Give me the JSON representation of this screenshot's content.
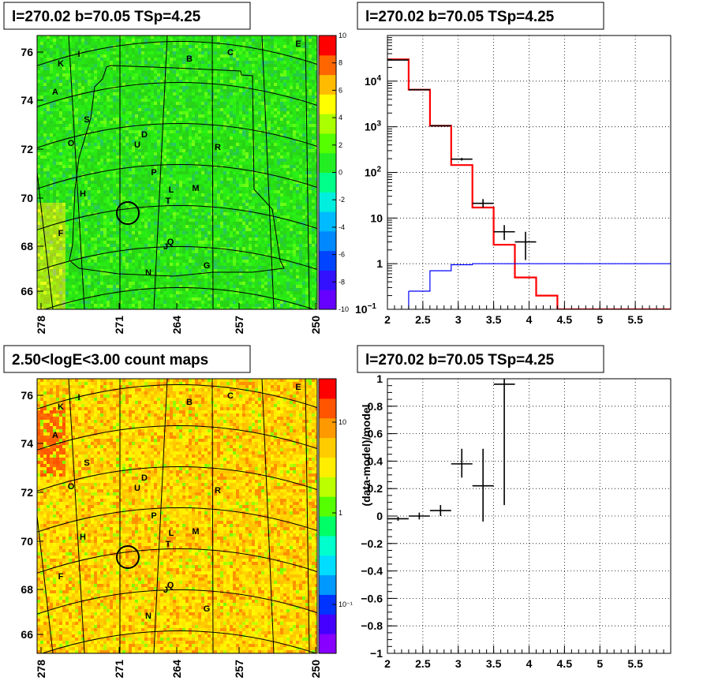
{
  "colors": {
    "data_points": "#000000",
    "model_step": "#ff0000",
    "background_step": "#0000ff",
    "grid": "#000000"
  },
  "panels": {
    "tl": {
      "title": "l=270.02 b=70.05 TSp=4.25",
      "y_ticks": [
        "66",
        "68",
        "70",
        "72",
        "74",
        "76"
      ],
      "x_ticks": [
        "278",
        "271",
        "264",
        "257",
        "250"
      ],
      "colorbar_ticks": [
        "-10",
        "-8",
        "-6",
        "-4",
        "-2",
        "0",
        "2",
        "4",
        "6",
        "8",
        "10"
      ],
      "labels": [
        "A",
        "B",
        "C",
        "D",
        "E",
        "F",
        "G",
        "H",
        "I",
        "K",
        "L",
        "M",
        "N",
        "O",
        "P",
        "Q",
        "R",
        "S",
        "T",
        "U",
        "J"
      ]
    },
    "tr": {
      "title": "l=270.02 b=70.05 TSp=4.25"
    },
    "bl": {
      "title": "2.50<logE<3.00 count maps",
      "y_ticks": [
        "66",
        "68",
        "70",
        "72",
        "74",
        "76"
      ],
      "x_ticks": [
        "278",
        "271",
        "264",
        "257",
        "250"
      ],
      "colorbar_ticks": [
        "10",
        "1",
        "10⁻¹"
      ],
      "labels": [
        "A",
        "B",
        "C",
        "D",
        "E",
        "F",
        "G",
        "H",
        "I",
        "K",
        "L",
        "M",
        "N",
        "O",
        "P",
        "Q",
        "R",
        "S",
        "T",
        "U",
        "J"
      ]
    },
    "br": {
      "title": "l=270.02 b=70.05 TSp=4.25"
    }
  },
  "chart_data": [
    {
      "type": "heatmap",
      "title": "l=270.02 b=70.05 TSp=4.25",
      "x_ticks": [
        278,
        271,
        264,
        257,
        250
      ],
      "y_ticks": [
        66,
        68,
        70,
        72,
        74,
        76
      ],
      "zlim": [
        -10,
        10
      ],
      "annotations": [
        "A",
        "B",
        "C",
        "D",
        "E",
        "F",
        "G",
        "H",
        "I",
        "K",
        "L",
        "M",
        "N",
        "O",
        "P",
        "Q",
        "R",
        "S",
        "T",
        "U",
        "J"
      ]
    },
    {
      "type": "line",
      "title": "l=270.02 b=70.05 TSp=4.25",
      "xlim": [
        2,
        6
      ],
      "ylim": [
        0.1,
        100000
      ],
      "yscale": "log",
      "x_ticks": [
        2,
        2.5,
        3,
        3.5,
        4,
        4.5,
        5,
        5.5
      ],
      "y_tick_labels": [
        "10^-1",
        "1",
        "10",
        "10^2",
        "10^3",
        "10^4"
      ],
      "series": [
        {
          "style": "step",
          "color": "red",
          "edges": [
            2,
            2.3,
            2.6,
            2.9,
            3.2,
            3.5,
            3.8,
            4.1,
            4.4,
            6
          ],
          "values": [
            30000,
            6500,
            1050,
            145,
            17,
            2.6,
            0.5,
            0.2,
            0.1
          ]
        },
        {
          "style": "step",
          "color": "blue",
          "edges": [
            2.3,
            2.6,
            2.9,
            3.2,
            6
          ],
          "values": [
            0.25,
            0.7,
            0.95,
            1.0
          ]
        },
        {
          "style": "errorbar",
          "color": "black",
          "points": [
            {
              "x": 2.15,
              "xerr": 0.15,
              "y": 29000,
              "ylo": 28800,
              "yhi": 29200
            },
            {
              "x": 2.45,
              "xerr": 0.15,
              "y": 6500,
              "ylo": 6430,
              "yhi": 6570
            },
            {
              "x": 2.75,
              "xerr": 0.15,
              "y": 1050,
              "ylo": 1020,
              "yhi": 1080
            },
            {
              "x": 3.05,
              "xerr": 0.15,
              "y": 195,
              "ylo": 182,
              "yhi": 208
            },
            {
              "x": 3.35,
              "xerr": 0.15,
              "y": 21,
              "ylo": 17,
              "yhi": 26
            },
            {
              "x": 3.65,
              "xerr": 0.15,
              "y": 5,
              "ylo": 3.3,
              "yhi": 7
            },
            {
              "x": 3.95,
              "xerr": 0.15,
              "y": 3,
              "ylo": 1.2,
              "yhi": 5
            }
          ]
        }
      ]
    },
    {
      "type": "heatmap",
      "title": "2.50<logE<3.00 count maps",
      "x_ticks": [
        278,
        271,
        264,
        257,
        250
      ],
      "y_ticks": [
        66,
        68,
        70,
        72,
        74,
        76
      ],
      "zscale": "log",
      "annotations": [
        "A",
        "B",
        "C",
        "D",
        "E",
        "F",
        "G",
        "H",
        "I",
        "K",
        "L",
        "M",
        "N",
        "O",
        "P",
        "Q",
        "R",
        "S",
        "T",
        "U",
        "J"
      ]
    },
    {
      "type": "scatter",
      "title": "l=270.02 b=70.05 TSp=4.25",
      "ylabel": "(data-model)/model",
      "xlim": [
        2,
        6
      ],
      "ylim": [
        -1,
        1
      ],
      "x_ticks": [
        2,
        2.5,
        3,
        3.5,
        4,
        4.5,
        5,
        5.5
      ],
      "y_ticks": [
        -1,
        -0.8,
        -0.6,
        -0.4,
        -0.2,
        0,
        0.2,
        0.4,
        0.6,
        0.8,
        1
      ],
      "points": [
        {
          "x": 2.15,
          "xerr": 0.15,
          "y": -0.02,
          "ylo": -0.035,
          "yhi": -0.005
        },
        {
          "x": 2.45,
          "xerr": 0.15,
          "y": 0.0,
          "ylo": -0.025,
          "yhi": 0.025
        },
        {
          "x": 2.75,
          "xerr": 0.15,
          "y": 0.04,
          "ylo": 0.0,
          "yhi": 0.08
        },
        {
          "x": 3.05,
          "xerr": 0.15,
          "y": 0.38,
          "ylo": 0.28,
          "yhi": 0.49
        },
        {
          "x": 3.35,
          "xerr": 0.15,
          "y": 0.22,
          "ylo": -0.04,
          "yhi": 0.49
        },
        {
          "x": 3.65,
          "xerr": 0.15,
          "y": 0.96,
          "ylo": 0.08,
          "yhi": 1.0
        }
      ]
    }
  ]
}
